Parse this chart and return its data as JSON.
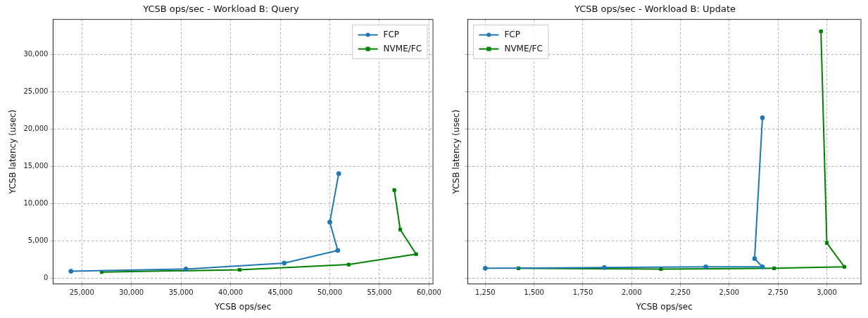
{
  "chart_data": [
    {
      "type": "line",
      "title": "YCSB ops/sec - Workload B: Query",
      "xlabel": "YCSB ops/sec",
      "ylabel": "YCSB latency (usec)",
      "xlim": [
        22100,
        60400
      ],
      "xticks": [
        {
          "value": 25000,
          "label": "25,000"
        },
        {
          "value": 30000,
          "label": "30,000"
        },
        {
          "value": 35000,
          "label": "35,000"
        },
        {
          "value": 40000,
          "label": "40,000"
        },
        {
          "value": 45000,
          "label": "45,000"
        },
        {
          "value": 50000,
          "label": "50,000"
        },
        {
          "value": 55000,
          "label": "55,000"
        },
        {
          "value": 60000,
          "label": "60,000"
        }
      ],
      "ylim": [
        -800,
        34700
      ],
      "yticks": [
        0,
        {
          "value": 5000,
          "label": "5,000"
        },
        {
          "value": 10000,
          "label": "10,000"
        },
        {
          "value": 15000,
          "label": "15,000"
        },
        {
          "value": 20000,
          "label": "20,000"
        },
        {
          "value": 25000,
          "label": "25,000"
        },
        {
          "value": 30000,
          "label": "30,000"
        }
      ],
      "grid": true,
      "legend": "top right",
      "line_style": "solid",
      "series": [
        {
          "name": "FCP",
          "color": "#1f77b4",
          "marker": "circle",
          "x": [
            23900,
            35500,
            45400,
            50800,
            50000,
            50900
          ],
          "values": [
            900,
            1200,
            2000,
            3700,
            7500,
            14000
          ]
        },
        {
          "name": "NVME/FC",
          "color": "#008000",
          "marker": "square",
          "x": [
            27000,
            40900,
            51900,
            58700,
            57100,
            56500
          ],
          "values": [
            800,
            1100,
            1800,
            3200,
            6500,
            11800
          ]
        }
      ]
    },
    {
      "type": "line",
      "title": "YCSB ops/sec - Workload B: Update",
      "xlabel": "YCSB ops/sec",
      "ylabel": "YCSB latency (usec)",
      "xlim": [
        1160,
        3175
      ],
      "xticks": [
        {
          "value": 1250,
          "label": "1,250"
        },
        {
          "value": 1500,
          "label": "1,500"
        },
        {
          "value": 1750,
          "label": "1,750"
        },
        {
          "value": 2000,
          "label": "2,000"
        },
        {
          "value": 2250,
          "label": "2,250"
        },
        {
          "value": 2500,
          "label": "2,500"
        },
        {
          "value": 2750,
          "label": "2,750"
        },
        {
          "value": 3000,
          "label": "3,000"
        }
      ],
      "ylim": [
        -800,
        34700
      ],
      "yticks": [
        0,
        5000,
        10000,
        15000,
        20000,
        25000,
        30000
      ],
      "tick_labels": "x",
      "grid": true,
      "legend": "top left",
      "line_style": "solid",
      "series": [
        {
          "name": "FCP",
          "color": "#1f77b4",
          "marker": "circle",
          "x": [
            1250,
            1860,
            2380,
            2670,
            2630,
            2670
          ],
          "values": [
            1300,
            1400,
            1500,
            1500,
            2600,
            21500
          ]
        },
        {
          "name": "NVME/FC",
          "color": "#008000",
          "marker": "square",
          "x": [
            1420,
            2150,
            2730,
            3090,
            3000,
            2970
          ],
          "values": [
            1300,
            1200,
            1300,
            1500,
            4700,
            33100
          ]
        }
      ]
    }
  ]
}
